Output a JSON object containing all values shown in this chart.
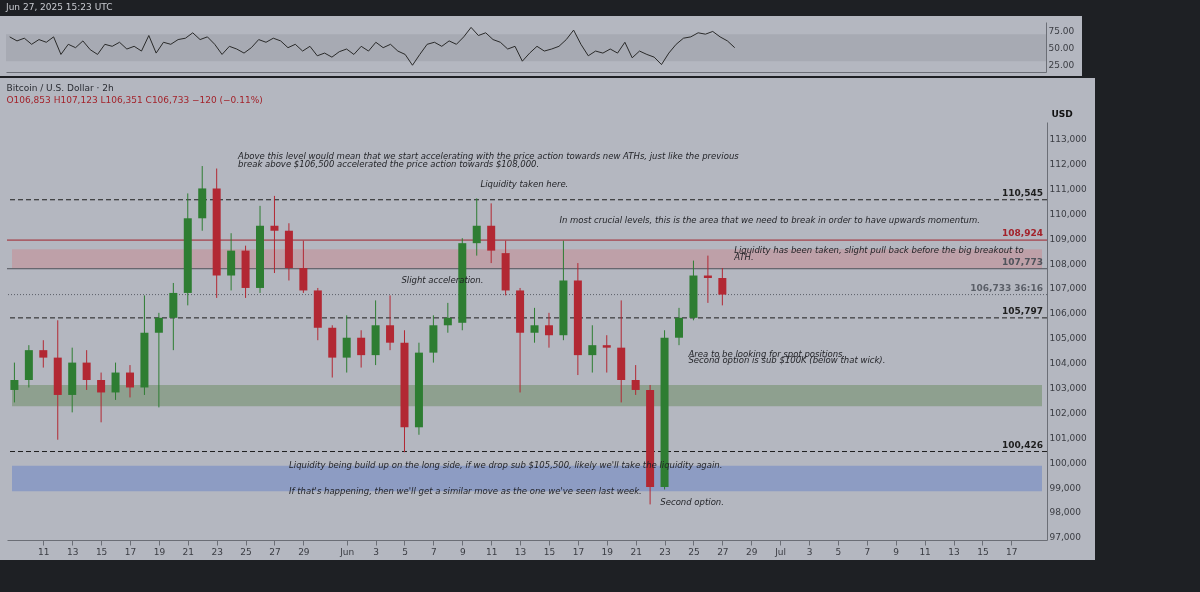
{
  "chart_data": [
    {
      "type": "line",
      "annotations": [
        "Jun 27, 2025 15:23 UTC"
      ],
      "color": "#2a2a2a",
      "categories": [
        null,
        null,
        null,
        null,
        null,
        null,
        null,
        null,
        null,
        null,
        null,
        null,
        null,
        null,
        null,
        null,
        null,
        null,
        null,
        null,
        null,
        null,
        null,
        null,
        null,
        null,
        null,
        null,
        null,
        null,
        null,
        null,
        null,
        null,
        null,
        null,
        null,
        null,
        null,
        null,
        null,
        null,
        null,
        null,
        null,
        null,
        null,
        null,
        null,
        null,
        null,
        null,
        null,
        null,
        null,
        null,
        null,
        null,
        null,
        null,
        null,
        null,
        null,
        null,
        null,
        null,
        null,
        null,
        null,
        null,
        null,
        null,
        null,
        null,
        null,
        null,
        null,
        null,
        null,
        null,
        null,
        null,
        null,
        null,
        null,
        null,
        null,
        null,
        null,
        null,
        null,
        null,
        null,
        null,
        null,
        null,
        null,
        null,
        null,
        null,
        null,
        null,
        null,
        null,
        null,
        null,
        null,
        null,
        null,
        null,
        null,
        null,
        null,
        null,
        null,
        null,
        null,
        null,
        null,
        null,
        null,
        null,
        null,
        null,
        null,
        null,
        null,
        null,
        null,
        null,
        null,
        null,
        null,
        null,
        null,
        null,
        null,
        null,
        null,
        null,
        null,
        null
      ],
      "values": [
        66,
        60,
        64,
        55,
        62,
        58,
        66,
        40,
        55,
        50,
        60,
        47,
        40,
        55,
        52,
        58,
        48,
        52,
        45,
        68,
        42,
        58,
        55,
        62,
        64,
        72,
        62,
        66,
        55,
        40,
        52,
        48,
        42,
        50,
        62,
        58,
        64,
        60,
        50,
        55,
        45,
        52,
        38,
        42,
        36,
        44,
        48,
        40,
        52,
        45,
        58,
        50,
        55,
        45,
        40,
        24,
        40,
        55,
        58,
        52,
        60,
        55,
        66,
        80,
        68,
        72,
        62,
        58,
        48,
        52,
        30,
        42,
        52,
        45,
        48,
        52,
        62,
        76,
        55,
        38,
        45,
        42,
        48,
        42,
        58,
        35,
        45,
        40,
        36,
        25,
        42,
        55,
        64,
        66,
        72,
        70,
        74,
        66,
        60,
        50,
        null,
        null,
        null,
        null,
        null,
        null,
        null,
        null,
        null,
        null,
        null,
        null,
        null,
        null,
        null,
        null,
        null,
        null,
        null,
        null,
        null,
        null,
        null,
        null,
        null,
        null,
        null,
        null,
        null,
        null,
        null,
        null,
        null,
        null,
        null,
        null,
        null,
        null,
        null,
        null,
        null,
        null
      ],
      "ylim": [
        14,
        88
      ],
      "yticks": [
        {
          "value": 25,
          "label": "25.00"
        },
        {
          "value": 50,
          "label": "50.00"
        },
        {
          "value": 75,
          "label": "75.00"
        }
      ],
      "bands": [
        {
          "axis": "y",
          "from": 30,
          "to": 70,
          "color": "#a7aab3"
        }
      ],
      "tick_labels": "y"
    },
    {
      "type": "candlestick",
      "title": "Bitcoin / U.S. Dollar · 2h",
      "subtitle": "O106,853 H107,123 L106,351 C106,733 −120 (−0.11%)",
      "ylabel": "USD",
      "x": [
        "2025-05-09",
        "2025-05-10",
        "2025-05-11",
        "2025-05-12",
        "2025-05-13",
        "2025-05-14",
        "2025-05-15",
        "2025-05-16",
        "2025-05-17",
        "2025-05-18",
        "2025-05-19",
        "2025-05-20",
        "2025-05-21",
        "2025-05-22",
        "2025-05-23",
        "2025-05-24",
        "2025-05-25",
        "2025-05-26",
        "2025-05-27",
        "2025-05-28",
        "2025-05-29",
        "2025-05-30",
        "2025-05-31",
        "2025-06-01",
        "2025-06-02",
        "2025-06-03",
        "2025-06-04",
        "2025-06-05",
        "2025-06-06",
        "2025-06-07",
        "2025-06-08",
        "2025-06-09",
        "2025-06-10",
        "2025-06-11",
        "2025-06-12",
        "2025-06-13",
        "2025-06-14",
        "2025-06-15",
        "2025-06-16",
        "2025-06-17",
        "2025-06-18",
        "2025-06-19",
        "2025-06-20",
        "2025-06-21",
        "2025-06-22",
        "2025-06-23",
        "2025-06-24",
        "2025-06-25",
        "2025-06-26",
        "2025-06-27"
      ],
      "ohlc": [
        [
          102900,
          104000,
          102400,
          103300
        ],
        [
          103300,
          104700,
          103000,
          104500
        ],
        [
          104500,
          104900,
          103800,
          104200
        ],
        [
          104200,
          105700,
          100900,
          102700
        ],
        [
          102700,
          104600,
          102000,
          104000
        ],
        [
          104000,
          104500,
          102900,
          103300
        ],
        [
          103300,
          103600,
          101600,
          102800
        ],
        [
          102800,
          104000,
          102500,
          103600
        ],
        [
          103600,
          103900,
          102600,
          103000
        ],
        [
          103000,
          106700,
          102700,
          105200
        ],
        [
          105200,
          106000,
          102200,
          105800
        ],
        [
          105800,
          107200,
          104500,
          106800
        ],
        [
          106800,
          110800,
          106300,
          109800
        ],
        [
          109800,
          111900,
          109300,
          111000
        ],
        [
          111000,
          111800,
          106600,
          107500
        ],
        [
          107500,
          109200,
          106900,
          108500
        ],
        [
          108500,
          108700,
          106600,
          107000
        ],
        [
          107000,
          110300,
          106800,
          109500
        ],
        [
          109500,
          110700,
          107600,
          109300
        ],
        [
          109300,
          109600,
          107300,
          107800
        ],
        [
          107800,
          108900,
          106800,
          106900
        ],
        [
          106900,
          107000,
          104900,
          105400
        ],
        [
          105400,
          105500,
          103400,
          104200
        ],
        [
          104200,
          105900,
          103600,
          105000
        ],
        [
          105000,
          105300,
          103800,
          104300
        ],
        [
          104300,
          106500,
          103900,
          105500
        ],
        [
          105500,
          106700,
          104500,
          104800
        ],
        [
          104800,
          105300,
          100400,
          101400
        ],
        [
          101400,
          104800,
          101100,
          104400
        ],
        [
          104400,
          105900,
          104000,
          105500
        ],
        [
          105500,
          106400,
          105200,
          105800
        ],
        [
          105600,
          109000,
          105300,
          108800
        ],
        [
          108800,
          110600,
          108300,
          109500
        ],
        [
          109500,
          110400,
          108000,
          108500
        ],
        [
          108400,
          108900,
          106700,
          106900
        ],
        [
          106900,
          107000,
          102800,
          105200
        ],
        [
          105200,
          106200,
          104800,
          105500
        ],
        [
          105500,
          106000,
          104600,
          105100
        ],
        [
          105100,
          108900,
          104900,
          107300
        ],
        [
          107300,
          108000,
          103500,
          104300
        ],
        [
          104300,
          105500,
          103600,
          104700
        ],
        [
          104700,
          105100,
          103600,
          104600
        ],
        [
          104600,
          106500,
          102400,
          103300
        ],
        [
          103300,
          103900,
          102700,
          102900
        ],
        [
          102900,
          103100,
          98300,
          99000
        ],
        [
          99000,
          105300,
          98900,
          105000
        ],
        [
          105000,
          106200,
          104700,
          105800
        ],
        [
          105800,
          108100,
          105700,
          107500
        ],
        [
          107500,
          108300,
          106400,
          107400
        ],
        [
          107400,
          107800,
          106300,
          106733
        ]
      ],
      "colors": [
        "#2e7d32",
        "#2e7d32",
        "#b22833",
        "#b22833",
        "#2e7d32",
        "#b22833",
        "#b22833",
        "#2e7d32",
        "#b22833",
        "#2e7d32",
        "#2e7d32",
        "#2e7d32",
        "#2e7d32",
        "#2e7d32",
        "#b22833",
        "#2e7d32",
        "#b22833",
        "#2e7d32",
        "#b22833",
        "#b22833",
        "#b22833",
        "#b22833",
        "#b22833",
        "#2e7d32",
        "#b22833",
        "#2e7d32",
        "#b22833",
        "#b22833",
        "#2e7d32",
        "#2e7d32",
        "#2e7d32",
        "#2e7d32",
        "#2e7d32",
        "#b22833",
        "#b22833",
        "#b22833",
        "#2e7d32",
        "#b22833",
        "#2e7d32",
        "#b22833",
        "#2e7d32",
        "#b22833",
        "#b22833",
        "#b22833",
        "#b22833",
        "#2e7d32",
        "#2e7d32",
        "#2e7d32",
        "#b22833",
        "#b22833"
      ],
      "xlim": [
        "2025-05-08T20:00",
        "2025-07-19T03:00"
      ],
      "ylim": [
        96870,
        113670
      ],
      "xticks": [
        {
          "value": "2025-05-11",
          "label": "11"
        },
        {
          "value": "2025-05-13",
          "label": "13"
        },
        {
          "value": "2025-05-15",
          "label": "15"
        },
        {
          "value": "2025-05-17",
          "label": "17"
        },
        {
          "value": "2025-05-19",
          "label": "19"
        },
        {
          "value": "2025-05-21",
          "label": "21"
        },
        {
          "value": "2025-05-23",
          "label": "23"
        },
        {
          "value": "2025-05-25",
          "label": "25"
        },
        {
          "value": "2025-05-27",
          "label": "27"
        },
        {
          "value": "2025-05-29",
          "label": "29"
        },
        {
          "value": "2025-06-01",
          "label": "Jun"
        },
        {
          "value": "2025-06-03",
          "label": "3"
        },
        {
          "value": "2025-06-05",
          "label": "5"
        },
        {
          "value": "2025-06-07",
          "label": "7"
        },
        {
          "value": "2025-06-09",
          "label": "9"
        },
        {
          "value": "2025-06-11",
          "label": "11"
        },
        {
          "value": "2025-06-13",
          "label": "13"
        },
        {
          "value": "2025-06-15",
          "label": "15"
        },
        {
          "value": "2025-06-17",
          "label": "17"
        },
        {
          "value": "2025-06-19",
          "label": "19"
        },
        {
          "value": "2025-06-21",
          "label": "21"
        },
        {
          "value": "2025-06-23",
          "label": "23"
        },
        {
          "value": "2025-06-25",
          "label": "25"
        },
        {
          "value": "2025-06-27",
          "label": "27"
        },
        {
          "value": "2025-06-29",
          "label": "29"
        },
        {
          "value": "2025-07-01",
          "label": "Jul"
        },
        {
          "value": "2025-07-03",
          "label": "3"
        },
        {
          "value": "2025-07-05",
          "label": "5"
        },
        {
          "value": "2025-07-07",
          "label": "7"
        },
        {
          "value": "2025-07-09",
          "label": "9"
        },
        {
          "value": "2025-07-11",
          "label": "11"
        },
        {
          "value": "2025-07-13",
          "label": "13"
        },
        {
          "value": "2025-07-15",
          "label": "15"
        },
        {
          "value": "2025-07-17",
          "label": "17"
        }
      ],
      "yticks": [
        {
          "value": 97000,
          "label": "97,000"
        },
        {
          "value": 98000,
          "label": "98,000"
        },
        {
          "value": 99000,
          "label": "99,000"
        },
        {
          "value": 100000,
          "label": "100,000"
        },
        {
          "value": 101000,
          "label": "101,000"
        },
        {
          "value": 102000,
          "label": "102,000"
        },
        {
          "value": 103000,
          "label": "103,000"
        },
        {
          "value": 104000,
          "label": "104,000"
        },
        {
          "value": 105000,
          "label": "105,000"
        },
        {
          "value": 106000,
          "label": "106,000"
        },
        {
          "value": 107000,
          "label": "107,000"
        },
        {
          "value": 108000,
          "label": "108,000"
        },
        {
          "value": 109000,
          "label": "109,000"
        },
        {
          "value": 110000,
          "label": "110,000"
        },
        {
          "value": 111000,
          "label": "111,000"
        },
        {
          "value": 112000,
          "label": "112,000"
        },
        {
          "value": 113000,
          "label": "113,000"
        }
      ],
      "bands": [
        {
          "axis": "y",
          "from": 102250,
          "to": 103100,
          "color": "#8ea08f"
        },
        {
          "axis": "y",
          "from": 98830,
          "to": 99850,
          "color": "#8d9cc3"
        },
        {
          "axis": "y",
          "from": 107780,
          "to": 108560,
          "color": "#bea0a8"
        }
      ],
      "ref_lines": [
        {
          "axis": "y",
          "value": 110545,
          "label": "110,545",
          "line_style": "dashed",
          "color": "#1e1e1e"
        },
        {
          "axis": "y",
          "value": 108924,
          "label": "108,924",
          "line_style": "solid",
          "color": "#a3232b"
        },
        {
          "axis": "y",
          "value": 107773,
          "label": "107,773",
          "line_style": "solid",
          "color": "#50545c"
        },
        {
          "axis": "y",
          "value": 106733,
          "label": "106,733 36:16",
          "line_style": "dotted",
          "color": "#5b5f68"
        },
        {
          "axis": "y",
          "value": 105797,
          "label": "105,797",
          "line_style": "dashed",
          "color": "#1e1e1e"
        },
        {
          "axis": "y",
          "value": 100426,
          "label": "100,426",
          "line_style": "dashed",
          "color": "#1e1e1e"
        }
      ],
      "annotations": [
        "Above this level would mean that we start accelerating with the price action towards new ATHs, just like the previous",
        "break above $106,500 accelerated the price action towards $108,000.",
        "Liquidity taken here.",
        "In most crucial levels, this is the area that we need to break in order to have upwards momentum.",
        "Liquidity has been taken, slight pull back before the big breakout to",
        "ATH.",
        "Slight acceleration.",
        "Area to be looking for spot positions.",
        "Second option is sub $100K (below that wick).",
        "Liquidity being build up on the long side, if we drop sub $105,500, likely we'll take the liquidity again.",
        "If that's happening, then we'll get a similar move as the one we've seen last week.",
        "Second option."
      ]
    }
  ]
}
